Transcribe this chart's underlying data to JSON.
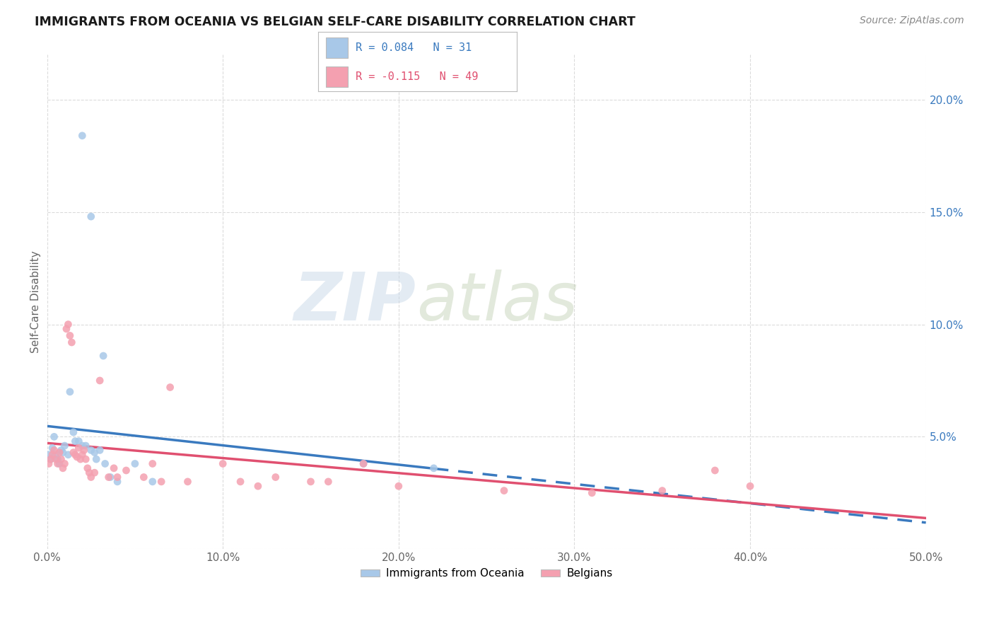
{
  "title": "IMMIGRANTS FROM OCEANIA VS BELGIAN SELF-CARE DISABILITY CORRELATION CHART",
  "source": "Source: ZipAtlas.com",
  "ylabel": "Self-Care Disability",
  "right_yticks": [
    "20.0%",
    "15.0%",
    "10.0%",
    "5.0%"
  ],
  "right_ytick_vals": [
    0.2,
    0.15,
    0.1,
    0.05
  ],
  "legend1_label": "Immigrants from Oceania",
  "legend2_label": "Belgians",
  "r1": 0.084,
  "n1": 31,
  "r2": -0.115,
  "n2": 49,
  "blue_color": "#a8c8e8",
  "pink_color": "#f4a0b0",
  "blue_line": "#3a7abf",
  "pink_line": "#e05070",
  "watermark_zip": "ZIP",
  "watermark_atlas": "atlas",
  "scatter_blue": [
    [
      0.02,
      0.184
    ],
    [
      0.025,
      0.148
    ],
    [
      0.001,
      0.042
    ],
    [
      0.002,
      0.04
    ],
    [
      0.003,
      0.045
    ],
    [
      0.004,
      0.05
    ],
    [
      0.005,
      0.042
    ],
    [
      0.006,
      0.04
    ],
    [
      0.007,
      0.038
    ],
    [
      0.008,
      0.044
    ],
    [
      0.009,
      0.043
    ],
    [
      0.01,
      0.046
    ],
    [
      0.012,
      0.042
    ],
    [
      0.013,
      0.07
    ],
    [
      0.015,
      0.052
    ],
    [
      0.016,
      0.048
    ],
    [
      0.018,
      0.048
    ],
    [
      0.02,
      0.046
    ],
    [
      0.022,
      0.046
    ],
    [
      0.025,
      0.044
    ],
    [
      0.027,
      0.043
    ],
    [
      0.028,
      0.04
    ],
    [
      0.03,
      0.044
    ],
    [
      0.032,
      0.086
    ],
    [
      0.033,
      0.038
    ],
    [
      0.036,
      0.032
    ],
    [
      0.04,
      0.03
    ],
    [
      0.05,
      0.038
    ],
    [
      0.06,
      0.03
    ],
    [
      0.18,
      0.038
    ],
    [
      0.22,
      0.036
    ]
  ],
  "scatter_pink": [
    [
      0.001,
      0.038
    ],
    [
      0.002,
      0.04
    ],
    [
      0.003,
      0.042
    ],
    [
      0.004,
      0.044
    ],
    [
      0.005,
      0.04
    ],
    [
      0.006,
      0.038
    ],
    [
      0.007,
      0.043
    ],
    [
      0.008,
      0.04
    ],
    [
      0.009,
      0.036
    ],
    [
      0.01,
      0.038
    ],
    [
      0.011,
      0.098
    ],
    [
      0.012,
      0.1
    ],
    [
      0.013,
      0.095
    ],
    [
      0.014,
      0.092
    ],
    [
      0.015,
      0.043
    ],
    [
      0.016,
      0.042
    ],
    [
      0.017,
      0.041
    ],
    [
      0.018,
      0.045
    ],
    [
      0.019,
      0.04
    ],
    [
      0.02,
      0.042
    ],
    [
      0.021,
      0.044
    ],
    [
      0.022,
      0.04
    ],
    [
      0.023,
      0.036
    ],
    [
      0.024,
      0.034
    ],
    [
      0.025,
      0.032
    ],
    [
      0.027,
      0.034
    ],
    [
      0.03,
      0.075
    ],
    [
      0.035,
      0.032
    ],
    [
      0.038,
      0.036
    ],
    [
      0.04,
      0.032
    ],
    [
      0.045,
      0.035
    ],
    [
      0.055,
      0.032
    ],
    [
      0.06,
      0.038
    ],
    [
      0.065,
      0.03
    ],
    [
      0.07,
      0.072
    ],
    [
      0.08,
      0.03
    ],
    [
      0.1,
      0.038
    ],
    [
      0.11,
      0.03
    ],
    [
      0.12,
      0.028
    ],
    [
      0.13,
      0.032
    ],
    [
      0.15,
      0.03
    ],
    [
      0.16,
      0.03
    ],
    [
      0.18,
      0.038
    ],
    [
      0.2,
      0.028
    ],
    [
      0.26,
      0.026
    ],
    [
      0.31,
      0.025
    ],
    [
      0.35,
      0.026
    ],
    [
      0.38,
      0.035
    ],
    [
      0.4,
      0.028
    ]
  ],
  "xlim": [
    0.0,
    0.5
  ],
  "ylim": [
    0.0,
    0.22
  ],
  "grid_color": "#cccccc",
  "background_color": "#ffffff"
}
